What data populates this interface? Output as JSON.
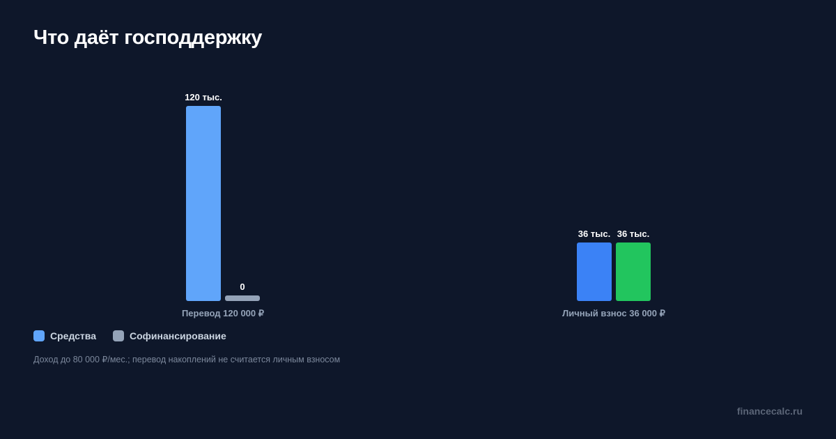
{
  "chart_data": {
    "type": "bar",
    "title": "Что даёт господдержку",
    "categories": [
      "Перевод 120 000 ₽",
      "Личный взнос 36 000 ₽"
    ],
    "bars": [
      {
        "category": 0,
        "value": 120000,
        "label": "120 тыс.",
        "color": "#60a5fa"
      },
      {
        "category": 0,
        "value": 0,
        "label": "0",
        "color": "#94a3b8"
      },
      {
        "category": 1,
        "value": 36000,
        "label": "36 тыс.",
        "color": "#3b82f6"
      },
      {
        "category": 1,
        "value": 36000,
        "label": "36 тыс.",
        "color": "#22c55e"
      }
    ],
    "ylim": [
      0,
      120000
    ],
    "grid": false,
    "legend_placement": "bottom-left"
  },
  "legend": {
    "items": [
      {
        "label": "Средства",
        "color": "#60a5fa"
      },
      {
        "label": "Софинансирование",
        "color": "#94a3b8"
      }
    ]
  },
  "note": "Доход до 80 000 ₽/мес.; перевод накоплений не считается личным взносом",
  "watermark": "financecalc.ru"
}
